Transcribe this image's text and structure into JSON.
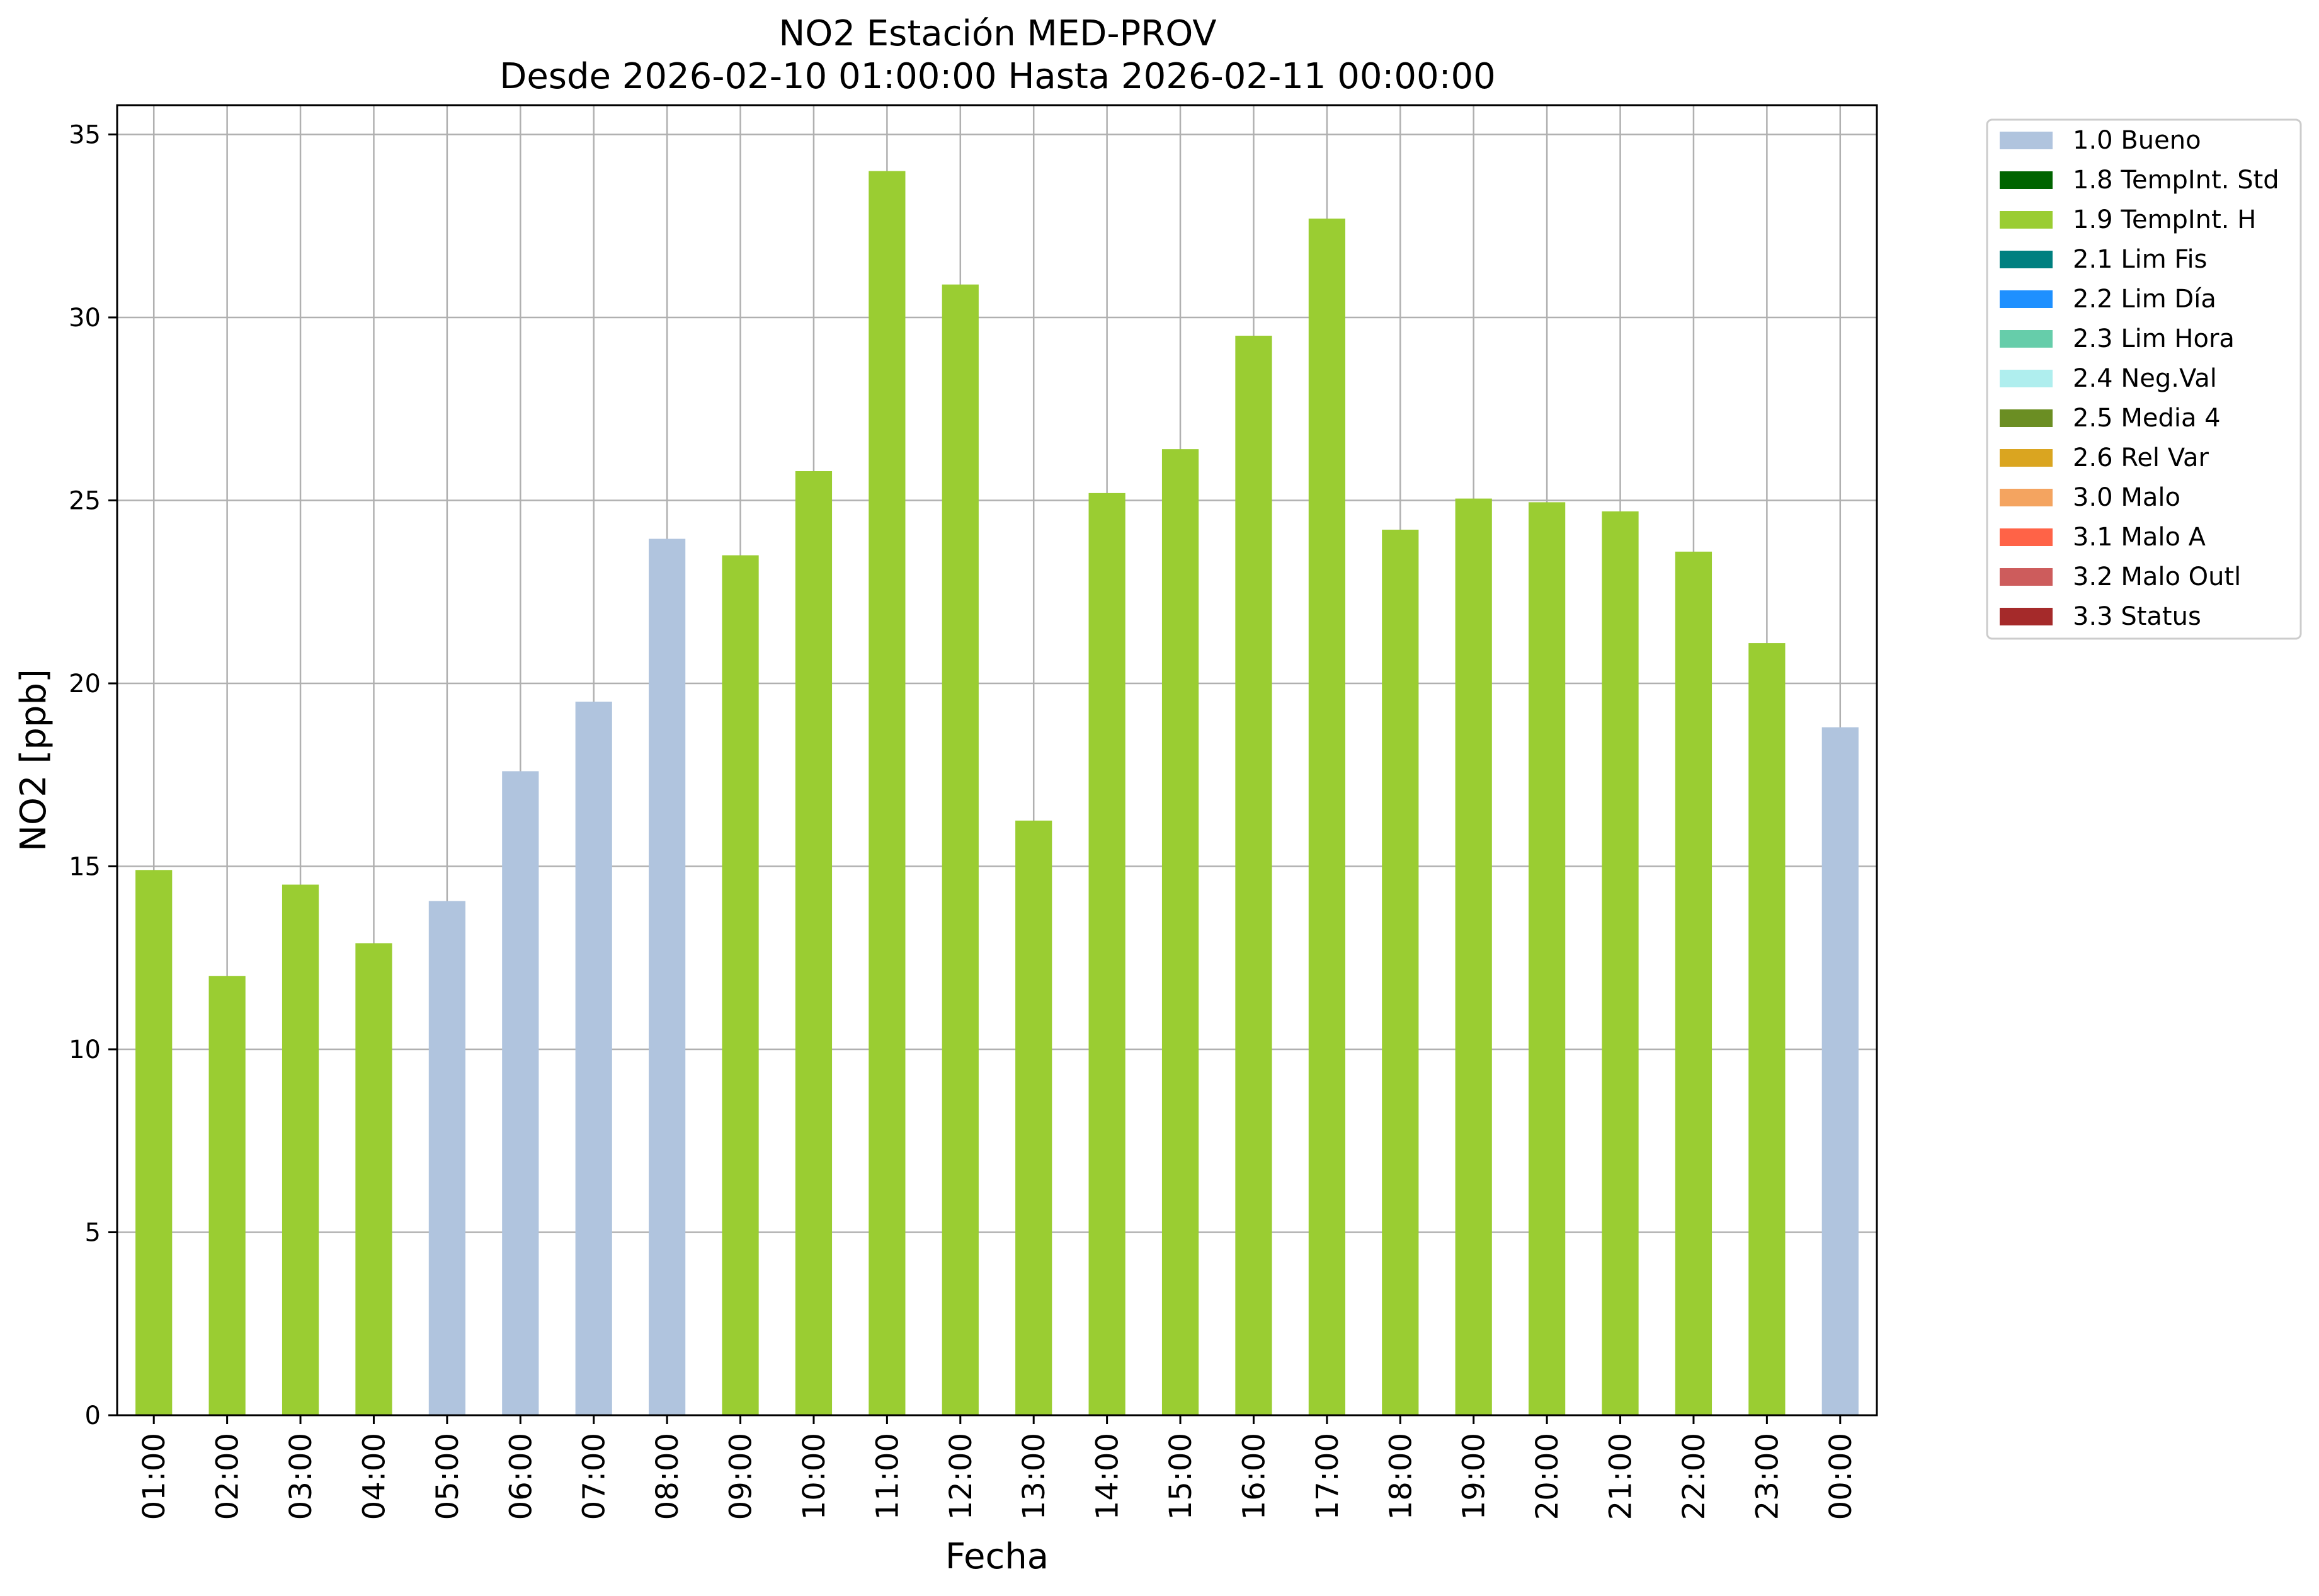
{
  "chart_data": {
    "type": "bar",
    "title": "NO2 Estación MED-PROV",
    "subtitle": "Desde 2026-02-10 01:00:00 Hasta 2026-02-11 00:00:00",
    "xlabel": "Fecha",
    "ylabel": "NO2 [ppb]",
    "ylim": [
      0,
      35.8
    ],
    "yticks": [
      0,
      5,
      10,
      15,
      20,
      25,
      30,
      35
    ],
    "grid": true,
    "legend_position": "outside top-right",
    "categories": [
      "01:00",
      "02:00",
      "03:00",
      "04:00",
      "05:00",
      "06:00",
      "07:00",
      "08:00",
      "09:00",
      "10:00",
      "11:00",
      "12:00",
      "13:00",
      "14:00",
      "15:00",
      "16:00",
      "17:00",
      "18:00",
      "19:00",
      "20:00",
      "21:00",
      "22:00",
      "23:00",
      "00:00"
    ],
    "values": [
      14.9,
      12.0,
      14.5,
      12.9,
      14.05,
      17.6,
      19.5,
      23.95,
      23.5,
      25.8,
      34.0,
      30.9,
      16.25,
      25.2,
      26.4,
      29.5,
      32.7,
      24.2,
      25.05,
      24.95,
      24.7,
      23.6,
      21.1,
      18.8
    ],
    "flags": [
      "1.9 TempInt. H",
      "1.9 TempInt. H",
      "1.9 TempInt. H",
      "1.9 TempInt. H",
      "1.0 Bueno",
      "1.0 Bueno",
      "1.0 Bueno",
      "1.0 Bueno",
      "1.9 TempInt. H",
      "1.9 TempInt. H",
      "1.9 TempInt. H",
      "1.9 TempInt. H",
      "1.9 TempInt. H",
      "1.9 TempInt. H",
      "1.9 TempInt. H",
      "1.9 TempInt. H",
      "1.9 TempInt. H",
      "1.9 TempInt. H",
      "1.9 TempInt. H",
      "1.9 TempInt. H",
      "1.9 TempInt. H",
      "1.9 TempInt. H",
      "1.9 TempInt. H",
      "1.0 Bueno"
    ],
    "legend": [
      {
        "label": "1.0 Bueno",
        "color": "#b0c4de"
      },
      {
        "label": "1.8 TempInt. Std",
        "color": "#006400"
      },
      {
        "label": "1.9 TempInt. H",
        "color": "#9acd32"
      },
      {
        "label": "2.1 Lim Fis",
        "color": "#008080"
      },
      {
        "label": "2.2 Lim Día",
        "color": "#1e90ff"
      },
      {
        "label": "2.3 Lim Hora",
        "color": "#66cdaa"
      },
      {
        "label": "2.4 Neg.Val",
        "color": "#afeeee"
      },
      {
        "label": "2.5 Media 4",
        "color": "#6b8e23"
      },
      {
        "label": "2.6 Rel Var",
        "color": "#daa520"
      },
      {
        "label": "3.0 Malo",
        "color": "#f4a460"
      },
      {
        "label": "3.1 Malo A",
        "color": "#ff6347"
      },
      {
        "label": "3.2 Malo Outl",
        "color": "#cd5c5c"
      },
      {
        "label": "3.3 Status",
        "color": "#a52a2a"
      }
    ]
  }
}
